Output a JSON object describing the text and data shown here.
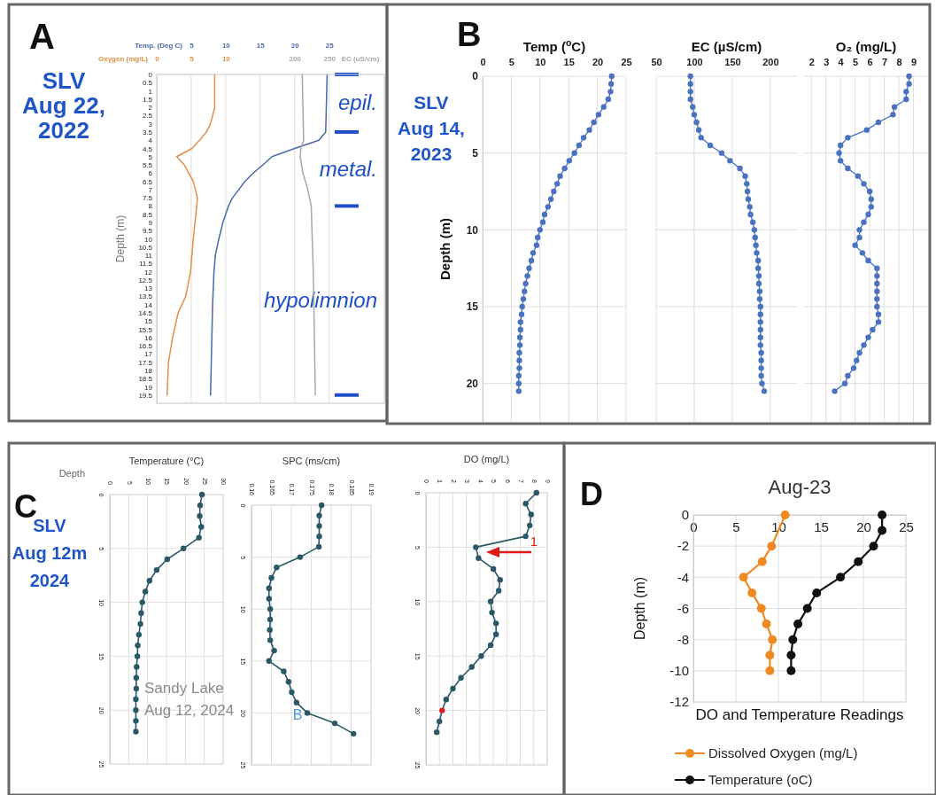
{
  "chart_data": [
    {
      "type": "line",
      "xlabel": "Temp. (Deg C)",
      "x2label": "Oxygen (mg/L)",
      "ylabel": "Depth (m)",
      "xlim": [
        0,
        33
      ],
      "xticks": [
        5,
        10,
        15,
        20,
        25
      ],
      "x2lim": [
        0,
        33
      ],
      "x2ticks": [
        0,
        5,
        10
      ],
      "ylim": [
        20,
        0
      ],
      "yticks": [
        0,
        0.5,
        1,
        1.5,
        2,
        2.5,
        3,
        3.5,
        4,
        4.5,
        5,
        5.5,
        6,
        6.5,
        7,
        7.5,
        8,
        8.5,
        9,
        9.5,
        10,
        10.5,
        11,
        11.5,
        12,
        12.5,
        13,
        13.5,
        14,
        14.5,
        15,
        15.5,
        16,
        16.5,
        17,
        17.5,
        18,
        18.5,
        19,
        19.5
      ],
      "grid": "x",
      "marker": "none",
      "line_style": "solid",
      "series": [
        {
          "axis": "x2",
          "color": "#e0904a",
          "x": [
            8.4,
            8.4,
            7.8,
            7.2,
            6.2,
            5.1,
            2.9,
            4,
            5.3,
            5.9,
            5.8,
            5.3,
            4.9,
            4.2,
            3.1,
            2.3,
            1.7,
            1.5
          ],
          "values": [
            0,
            2,
            3,
            3.5,
            4,
            4.5,
            5,
            5.5,
            6.5,
            7.5,
            8,
            10,
            12,
            13.5,
            14.5,
            16,
            17.5,
            19.5
          ]
        },
        {
          "color": "#4a6aa8",
          "x": [
            24.7,
            24.5,
            23.5,
            20,
            16.7,
            15.4,
            14,
            12.8,
            11.9,
            11,
            10.4,
            9.6,
            9,
            8.5,
            8.3,
            8.1,
            7.8
          ],
          "values": [
            0,
            3.5,
            4,
            4.5,
            5,
            5.5,
            6,
            6.5,
            7,
            7.5,
            8,
            9,
            10,
            11,
            12,
            14,
            19.5
          ]
        }
      ],
      "ref_lines": [
        {
          "axis": "y",
          "value": 0,
          "color": "#1f4fc8"
        },
        {
          "axis": "y",
          "value": 3.5,
          "color": "#1f4fc8"
        },
        {
          "axis": "y",
          "value": 8,
          "color": "#1f4fc8"
        },
        {
          "axis": "y",
          "value": 19.5,
          "color": "#1f4fc8"
        }
      ],
      "annotations": [
        "A",
        "SLV\nAug 22,\n2022",
        "epil.",
        "metal.",
        "hypolimnion"
      ]
    },
    {
      "type": "line",
      "xlabel": "EC (uS/cm)",
      "xlim": [
        0,
        330
      ],
      "xticks": [
        200,
        250
      ],
      "ylim": [
        20,
        0
      ],
      "tick_labels": "x",
      "line_style": "solid",
      "series": [
        {
          "color": "#a8a8a8",
          "x": [
            211,
            213,
            209,
            208,
            212,
            219,
            224,
            227,
            230
          ],
          "values": [
            0,
            4,
            4.5,
            5,
            6,
            7,
            8,
            12,
            19.5
          ]
        }
      ]
    },
    {
      "type": "line",
      "xlabel": "Temp ($^{o}$C)",
      "ylabel": "Depth (m)",
      "xlim": [
        0,
        25
      ],
      "xticks": [
        0,
        5,
        10,
        15,
        20,
        25
      ],
      "ylim": [
        22.5,
        0
      ],
      "yticks": [
        0,
        5,
        10,
        15,
        20
      ],
      "grid": true,
      "marker": "circle",
      "line_style": "solid",
      "series": [
        {
          "color": "#4a72c0",
          "x": [
            22.5,
            22.4,
            22.3,
            21.9,
            21.1,
            20.2,
            19.4,
            18.6,
            17.6,
            16.8,
            16.0,
            15.1,
            14.3,
            13.5,
            13.0,
            12.4,
            11.9,
            11.4,
            10.8,
            10.5,
            10.0,
            9.6,
            9.4,
            8.8,
            8.5,
            8.1,
            7.8,
            7.5,
            7.3,
            7.1,
            6.9,
            6.8,
            6.6,
            6.6,
            6.5,
            6.5,
            6.4,
            6.4,
            6.4,
            6.3,
            6.3,
            6.3
          ],
          "values": [
            0,
            0.5,
            1,
            1.5,
            2,
            2.5,
            3,
            3.5,
            4,
            4.5,
            5,
            5.5,
            6,
            6.5,
            7,
            7.5,
            8,
            8.5,
            9,
            9.5,
            10,
            10.5,
            11,
            11.5,
            12,
            12.5,
            13,
            13.5,
            14,
            14.5,
            15,
            15.5,
            16,
            16.5,
            17,
            17.5,
            18,
            18.5,
            19,
            19.5,
            20,
            20.5
          ]
        }
      ],
      "annotations": [
        "B",
        "SLV\nAug 14,\n2023"
      ]
    },
    {
      "type": "line",
      "xlabel": "EC (µS/cm)",
      "xlim": [
        50,
        235
      ],
      "xticks": [
        50,
        100,
        150,
        200
      ],
      "ylim": [
        22.5,
        0
      ],
      "yticks": [
        0,
        5,
        10,
        15,
        20
      ],
      "tick_labels": "x",
      "grid": true,
      "marker": "circle",
      "line_style": "solid",
      "series": [
        {
          "color": "#4a72c0",
          "x": [
            95,
            95,
            95,
            95,
            98,
            100,
            103,
            106,
            109,
            121,
            136,
            147,
            160,
            167,
            169,
            170,
            171,
            173,
            174,
            177,
            179,
            180,
            181,
            182,
            184,
            184,
            185,
            185,
            186,
            186,
            187,
            187,
            187,
            187,
            187,
            187,
            188,
            188,
            188,
            188,
            189,
            192
          ],
          "values": [
            0,
            0.5,
            1,
            1.5,
            2,
            2.5,
            3,
            3.5,
            4,
            4.5,
            5,
            5.5,
            6,
            6.5,
            7,
            7.5,
            8,
            8.5,
            9,
            9.5,
            10,
            10.5,
            11,
            11.5,
            12,
            12.5,
            13,
            13.5,
            14,
            14.5,
            15,
            15.5,
            16,
            16.5,
            17,
            17.5,
            18,
            18.5,
            19,
            19.5,
            20,
            20.5
          ]
        }
      ]
    },
    {
      "type": "line",
      "xlabel": "O₂ (mg/L)",
      "xlim": [
        1.5,
        10
      ],
      "xticks": [
        2,
        3,
        4,
        5,
        6,
        7,
        8,
        9
      ],
      "ylim": [
        22.5,
        0
      ],
      "yticks": [
        0,
        5,
        10,
        15,
        20
      ],
      "tick_labels": "x",
      "grid": true,
      "marker": "circle",
      "line_style": "solid",
      "series": [
        {
          "color": "#4a72c0",
          "x": [
            8.7,
            8.7,
            8.5,
            8.5,
            7.7,
            7.6,
            6.6,
            5.8,
            4.5,
            4.0,
            3.9,
            4.0,
            4.5,
            5.2,
            5.6,
            6.0,
            6.1,
            6.1,
            5.9,
            5.6,
            5.3,
            5.3,
            5.0,
            5.5,
            5.9,
            6.5,
            6.5,
            6.5,
            6.5,
            6.5,
            6.5,
            6.6,
            6.6,
            6.2,
            5.9,
            5.6,
            5.3,
            5.1,
            4.9,
            4.5,
            4.3,
            3.6
          ],
          "values": [
            0,
            0.5,
            1,
            1.5,
            2,
            2.5,
            3,
            3.5,
            4,
            4.5,
            5,
            5.5,
            6,
            6.5,
            7,
            7.5,
            8,
            8.5,
            9,
            9.5,
            10,
            10.5,
            11,
            11.5,
            12,
            12.5,
            13,
            13.5,
            14,
            14.5,
            15,
            15.5,
            16,
            16.5,
            17,
            17.5,
            18,
            18.5,
            19,
            19.5,
            20,
            20.5
          ]
        }
      ]
    },
    {
      "type": "line",
      "title": "Temperature (°C)",
      "ylabel": "Depth",
      "xlim": [
        0,
        30
      ],
      "xticks": [
        0,
        5,
        10,
        15,
        20,
        25,
        30
      ],
      "ylim": [
        25,
        0
      ],
      "yticks": [
        0,
        5,
        10,
        15,
        20,
        25
      ],
      "grid": true,
      "marker": "circle",
      "line_style": "solid",
      "series": [
        {
          "color": "#2b5866",
          "x": [
            24.4,
            23.9,
            23.8,
            24.2,
            23.6,
            19.5,
            15.2,
            12.4,
            10.5,
            9.4,
            8.6,
            8.3,
            8.1,
            7.7,
            7.4,
            7.3,
            7.1,
            7.0,
            7.0,
            6.9,
            6.9,
            6.9,
            6.9
          ],
          "values": [
            0,
            1,
            2,
            3,
            4,
            5,
            6,
            7,
            8,
            9,
            10,
            11,
            12,
            13,
            14,
            15,
            16,
            17,
            18,
            19,
            20,
            21,
            22
          ]
        }
      ],
      "annotations": [
        "C",
        "SLV\nAug 12m\n2024",
        "Sandy Lake\nAug 12, 2024"
      ]
    },
    {
      "type": "line",
      "title": "SPC (ms/cm)",
      "xlim": [
        0.16,
        0.19
      ],
      "xticks": [
        0.16,
        0.165,
        0.17,
        0.175,
        0.18,
        0.185,
        0.19
      ],
      "ylim": [
        25,
        0
      ],
      "yticks": [
        0,
        5,
        10,
        15,
        20,
        25
      ],
      "grid": true,
      "marker": "circle",
      "line_style": "solid",
      "series": [
        {
          "color": "#2b5866",
          "x": [
            0.1776,
            0.177,
            0.177,
            0.177,
            0.1769,
            0.1722,
            0.1663,
            0.165,
            0.1644,
            0.1644,
            0.1647,
            0.1647,
            0.1646,
            0.1647,
            0.1657,
            0.1644,
            0.1681,
            0.1693,
            0.1701,
            0.1713,
            0.174,
            0.1809,
            0.1856
          ],
          "values": [
            0,
            1,
            2,
            3,
            4,
            5,
            6,
            7,
            8,
            9,
            10,
            11,
            12,
            13,
            14,
            15,
            16,
            17,
            18,
            19,
            20,
            21,
            22
          ]
        }
      ],
      "annotations": [
        "B"
      ]
    },
    {
      "type": "line",
      "title": "DO (mg/L)",
      "xlim": [
        0,
        9
      ],
      "xticks": [
        0,
        1,
        2,
        3,
        4,
        5,
        6,
        7,
        8,
        9
      ],
      "ylim": [
        25,
        0
      ],
      "yticks": [
        0,
        5,
        10,
        15,
        20,
        25
      ],
      "grid": true,
      "marker": "circle",
      "line_style": "solid",
      "series": [
        {
          "color": "#2b5866",
          "colors": [
            "#2b5866",
            "#2b5866",
            "#2b5866",
            "#2b5866",
            "#2b5866",
            "#2b5866",
            "#2b5866",
            "#2b5866",
            "#2b5866",
            "#2b5866",
            "#2b5866",
            "#2b5866",
            "#2b5866",
            "#2b5866",
            "#2b5866",
            "#2b5866",
            "#2b5866",
            "#2b5866",
            "#2b5866",
            "#2b5866",
            "#e02020",
            "#2b5866",
            "#2b5866"
          ],
          "x": [
            8.2,
            7.4,
            7.8,
            7.7,
            7.4,
            3.7,
            3.9,
            5.0,
            5.5,
            5.4,
            4.8,
            4.9,
            5.2,
            5.2,
            4.8,
            4.1,
            3.4,
            2.6,
            2.0,
            1.5,
            1.2,
            1.0,
            0.8
          ],
          "values": [
            0,
            1,
            2,
            3,
            4,
            5,
            6,
            7,
            8,
            9,
            10,
            11,
            12,
            13,
            14,
            15,
            16,
            17,
            18,
            19,
            20,
            21,
            22
          ]
        }
      ],
      "annotations": [
        "1"
      ]
    },
    {
      "type": "line",
      "title": "Aug-23",
      "xlabel": "DO and Temperature Readings",
      "ylabel": "Depth (m)",
      "xlim": [
        0,
        25
      ],
      "xticks": [
        0,
        5,
        10,
        15,
        20,
        25
      ],
      "ylim": [
        -12,
        0
      ],
      "yticks": [
        0,
        -2,
        -4,
        -6,
        -8,
        -10,
        -12
      ],
      "grid": true,
      "marker": "circle",
      "line_style": "solid",
      "legend": "bottom",
      "series": [
        {
          "name": "Dissolved Oxygen (mg/L)",
          "color": "#ee8a22",
          "x": [
            10.8,
            9.2,
            8.1,
            5.9,
            6.9,
            8.0,
            8.6,
            9.3,
            9.0,
            9.0
          ],
          "values": [
            0,
            -2,
            -3,
            -4,
            -5,
            -6,
            -7,
            -8,
            -9,
            -10
          ]
        },
        {
          "name": "Temperature (oC)",
          "color": "#111111",
          "x": [
            22.2,
            22.2,
            21.2,
            19.4,
            17.3,
            14.5,
            13.4,
            12.3,
            11.7,
            11.5,
            11.5
          ],
          "values": [
            0,
            -1,
            -2,
            -3,
            -4,
            -5,
            -6,
            -7,
            -8,
            -9,
            -10
          ]
        }
      ],
      "annotations": [
        "D"
      ]
    }
  ]
}
